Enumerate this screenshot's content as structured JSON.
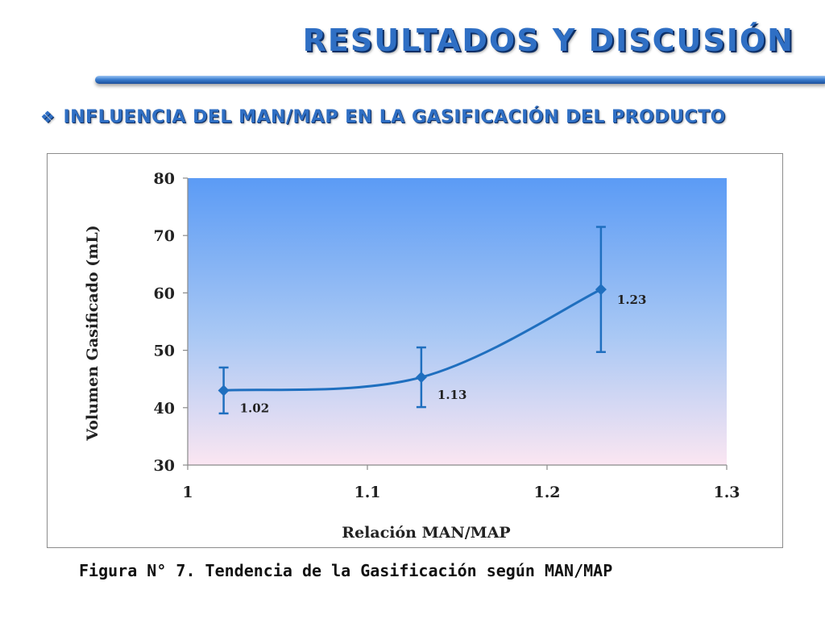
{
  "slide": {
    "title": "RESULTADOS Y DISCUSIÓN",
    "subtitle": "INFLUENCIA DEL MAN/MAP EN LA GASIFICACIÓN DEL PRODUCTO",
    "bullet_icon": "❖",
    "caption": "Figura N° 7. Tendencia de la Gasificación según MAN/MAP",
    "accent_color": "#2f6fc4"
  },
  "chart_data": {
    "type": "line",
    "title": "",
    "xlabel": "Relación MAN/MAP",
    "ylabel": "Volumen Gasificado (mL)",
    "xlim": [
      1,
      1.3
    ],
    "ylim": [
      30,
      80
    ],
    "xticks": [
      "1",
      "1.1",
      "1.2",
      "1.3"
    ],
    "yticks": [
      "30",
      "40",
      "50",
      "60",
      "70",
      "80"
    ],
    "grid": false,
    "line_style": "smoothed",
    "marker": "diamond",
    "series": [
      {
        "color": "#1f6fbf",
        "points": [
          {
            "x": 1.02,
            "y": 43.0,
            "err": 4.0,
            "label": "1.02"
          },
          {
            "x": 1.13,
            "y": 45.3,
            "err": 5.2,
            "label": "1.13"
          },
          {
            "x": 1.23,
            "y": 60.6,
            "err": 10.9,
            "label": "1.23"
          }
        ]
      }
    ],
    "plot_background": "gradient blue to pink"
  }
}
